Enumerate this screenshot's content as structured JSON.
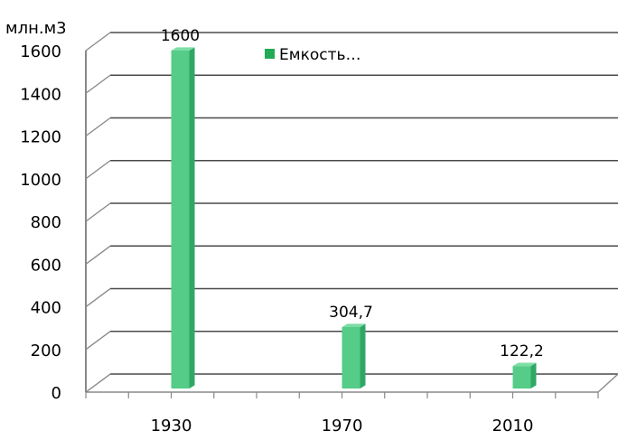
{
  "chart_data": {
    "type": "bar",
    "unit_label": "млн.м3",
    "categories": [
      "1930",
      "1970",
      "2010"
    ],
    "series": [
      {
        "name": "Емкость…",
        "values": [
          1600,
          304.7,
          122.2
        ],
        "data_labels": [
          "1600",
          "304,7",
          "122,2"
        ]
      }
    ],
    "ylim": [
      0,
      1600
    ],
    "yticks": [
      "0",
      "200",
      "400",
      "600",
      "800",
      "1000",
      "1200",
      "1400",
      "1600"
    ],
    "grid": true,
    "legend_placement": "top-center",
    "colors": {
      "bar": "#55cc88",
      "bar_side": "#2fa866",
      "bar_top": "#7ddda4",
      "legend_swatch": "#22aa55",
      "grid": "#4a4a4a"
    }
  }
}
